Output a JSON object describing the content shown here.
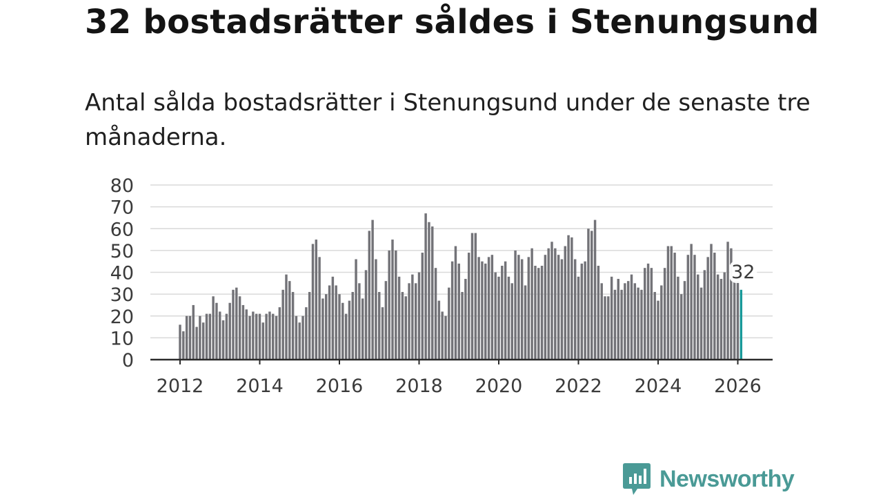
{
  "title": "32 bostadsrätter såldes i Stenungsund",
  "subtitle": "Antal sålda bostadsrätter i Stenungsund under de senaste tre månaderna.",
  "brand": "Newsworthy",
  "colors": {
    "bar": "#737378",
    "highlight": "#1a9a9a",
    "brand": "#4a9a96"
  },
  "chart_data": {
    "type": "bar",
    "title": "Antal sålda bostadsrätter i Stenungsund",
    "xlabel": "",
    "ylabel": "",
    "ylim": [
      0,
      80
    ],
    "yticks": [
      0,
      10,
      20,
      30,
      40,
      50,
      60,
      70,
      80
    ],
    "xticks": [
      "2012",
      "2014",
      "2016",
      "2018",
      "2020",
      "2022",
      "2024",
      "2026"
    ],
    "start": "2012-01",
    "end": "2026-02",
    "highlight_label": "32",
    "values": [
      16,
      13,
      20,
      20,
      25,
      15,
      20,
      17,
      21,
      21,
      29,
      26,
      22,
      18,
      21,
      26,
      32,
      33,
      29,
      25,
      23,
      20,
      22,
      21,
      21,
      17,
      21,
      22,
      21,
      20,
      24,
      32,
      39,
      36,
      31,
      20,
      17,
      20,
      24,
      31,
      53,
      55,
      47,
      28,
      30,
      34,
      38,
      34,
      30,
      26,
      21,
      27,
      31,
      46,
      35,
      28,
      41,
      59,
      64,
      46,
      31,
      24,
      36,
      50,
      55,
      50,
      38,
      31,
      29,
      35,
      39,
      35,
      40,
      49,
      67,
      63,
      61,
      42,
      27,
      22,
      20,
      33,
      45,
      52,
      44,
      31,
      37,
      49,
      58,
      58,
      47,
      45,
      44,
      47,
      48,
      40,
      38,
      43,
      45,
      38,
      35,
      50,
      48,
      46,
      34,
      47,
      51,
      43,
      42,
      43,
      48,
      51,
      54,
      51,
      48,
      46,
      52,
      57,
      56,
      46,
      38,
      44,
      45,
      60,
      59,
      64,
      43,
      35,
      29,
      29,
      38,
      32,
      37,
      32,
      35,
      36,
      39,
      35,
      33,
      32,
      42,
      44,
      42,
      31,
      27,
      34,
      42,
      52,
      52,
      49,
      38,
      30,
      36,
      48,
      53,
      48,
      39,
      33,
      41,
      47,
      53,
      49,
      39,
      37,
      40,
      54,
      51,
      36,
      36,
      32
    ]
  }
}
